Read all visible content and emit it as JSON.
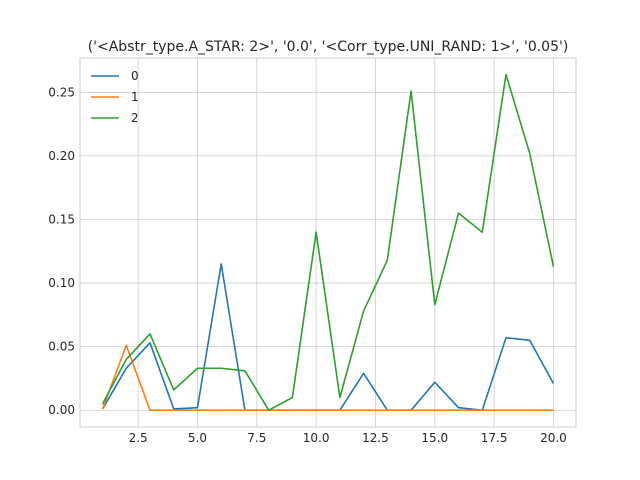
{
  "chart_data": {
    "type": "line",
    "title": "('<Abstr_type.A_STAR: 2>', '0.0', '<Corr_type.UNI_RAND: 1>', '0.05')",
    "xlabel": "",
    "ylabel": "",
    "xlim": [
      0.05,
      20.95
    ],
    "ylim": [
      -0.0132,
      0.277
    ],
    "x_ticks": [
      2.5,
      5.0,
      7.5,
      10.0,
      12.5,
      15.0,
      17.5,
      20.0
    ],
    "x_tick_labels": [
      "2.5",
      "5.0",
      "7.5",
      "10.0",
      "12.5",
      "15.0",
      "17.5",
      "20.0"
    ],
    "y_ticks": [
      0.0,
      0.05,
      0.1,
      0.15,
      0.2,
      0.25
    ],
    "y_tick_labels": [
      "0.00",
      "0.05",
      "0.10",
      "0.15",
      "0.20",
      "0.25"
    ],
    "grid": true,
    "legend_position": "top-left",
    "x": [
      1,
      2,
      3,
      4,
      5,
      6,
      7,
      8,
      9,
      10,
      11,
      12,
      13,
      14,
      15,
      16,
      17,
      18,
      19,
      20
    ],
    "series": [
      {
        "name": "0",
        "color": "#1f77b4",
        "values": [
          0.001,
          0.033,
          0.053,
          0.001,
          0.002,
          0.115,
          0.0,
          0.0,
          0.0,
          0.0,
          0.0,
          0.029,
          0.0,
          0.0,
          0.022,
          0.002,
          0.0,
          0.057,
          0.055,
          0.021
        ]
      },
      {
        "name": "1",
        "color": "#ff7f0e",
        "values": [
          0.001,
          0.051,
          0.0,
          0.0,
          0.0,
          0.0,
          0.0,
          0.0,
          0.0,
          0.0,
          0.0,
          0.0,
          0.0,
          0.0,
          0.0,
          0.0,
          0.0,
          0.0,
          0.0,
          0.0
        ]
      },
      {
        "name": "2",
        "color": "#2ca02c",
        "values": [
          0.005,
          0.04,
          0.06,
          0.016,
          0.033,
          0.033,
          0.031,
          0.0,
          0.01,
          0.14,
          0.01,
          0.078,
          0.118,
          0.251,
          0.083,
          0.155,
          0.14,
          0.264,
          0.202,
          0.113
        ]
      }
    ]
  },
  "style": {
    "grid_color": "#cccccc",
    "axis_color": "#cccccc",
    "text_color": "#262626"
  }
}
